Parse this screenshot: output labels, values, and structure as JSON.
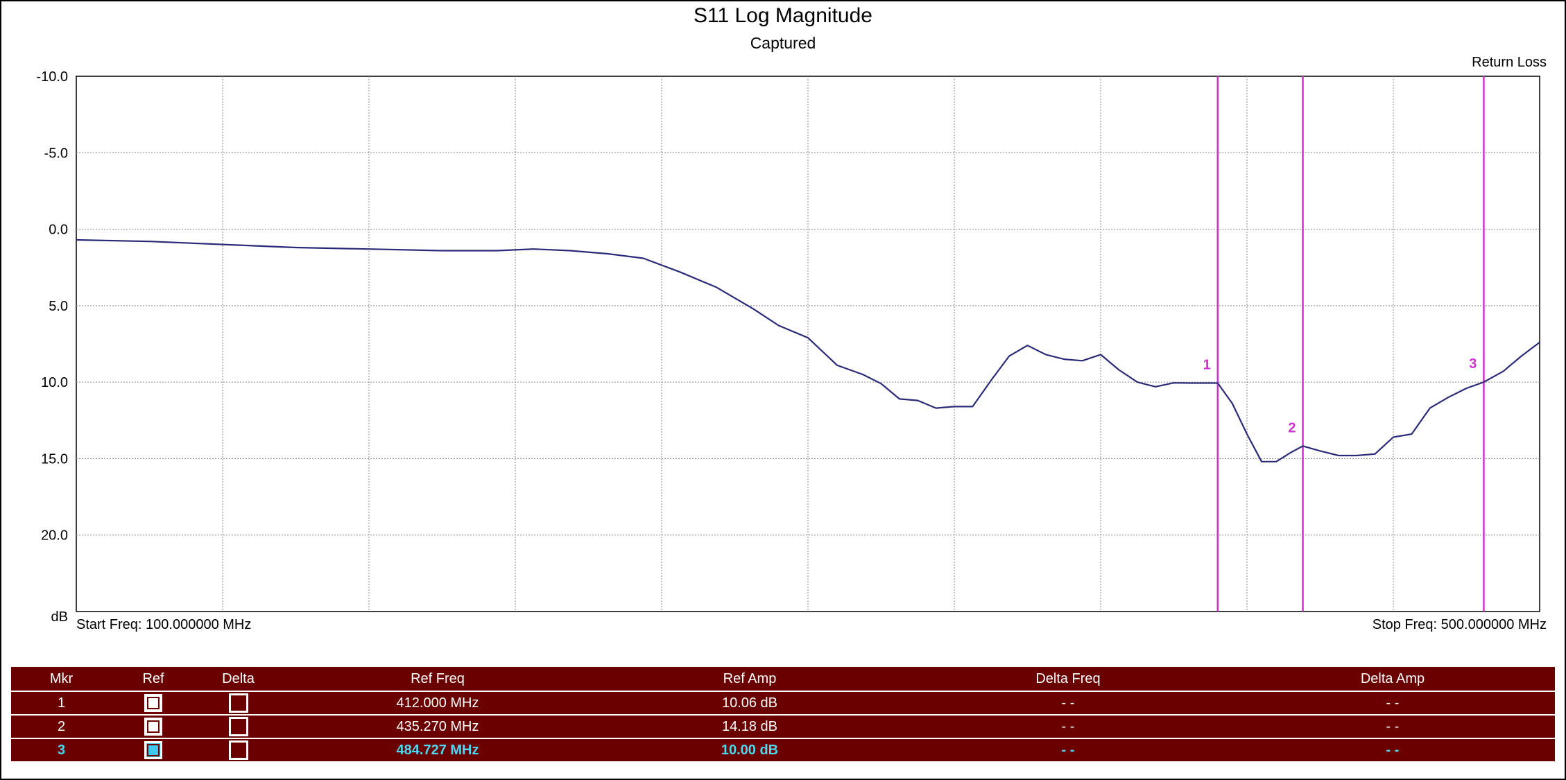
{
  "header": {
    "title": "S11 Log Magnitude",
    "subtitle": "Captured",
    "trace_label": "Return Loss"
  },
  "axis": {
    "y_unit": "dB",
    "start_freq": "Start Freq: 100.000000 MHz",
    "stop_freq": "Stop Freq: 500.000000 MHz"
  },
  "chart_data": {
    "type": "line",
    "title": "S11 Log Magnitude",
    "subtitle": "Captured",
    "xlabel": "",
    "ylabel": "dB",
    "xlim": [
      100,
      500
    ],
    "ylim": [
      -10,
      25
    ],
    "y_inverted": true,
    "y_ticks": [
      "-10.0",
      "-5.0",
      "0.0",
      "5.0",
      "10.0",
      "15.0",
      "20.0"
    ],
    "grid": true,
    "series": [
      {
        "name": "Return Loss",
        "color": "#2a2a78",
        "x": [
          100,
          120,
          140,
          160,
          180,
          200,
          215,
          225,
          235,
          245,
          255,
          265,
          275,
          285,
          292,
          300,
          308,
          315,
          320,
          325,
          330,
          335,
          340,
          345,
          350,
          355,
          360,
          365,
          370,
          375,
          380,
          385,
          390,
          395,
          400,
          405,
          410,
          412,
          416,
          420,
          424,
          428,
          432,
          435.27,
          440,
          445,
          450,
          455,
          460,
          465,
          470,
          475,
          480,
          484.727,
          490,
          495,
          500
        ],
        "values": [
          0.7,
          0.8,
          1.0,
          1.2,
          1.3,
          1.4,
          1.4,
          1.3,
          1.4,
          1.6,
          1.9,
          2.8,
          3.8,
          5.2,
          6.3,
          7.1,
          8.9,
          9.5,
          10.1,
          11.1,
          11.2,
          11.7,
          11.6,
          11.6,
          9.9,
          8.3,
          7.6,
          8.2,
          8.5,
          8.6,
          8.2,
          9.2,
          10.0,
          10.3,
          10.05,
          10.06,
          10.06,
          10.06,
          11.4,
          13.4,
          15.2,
          15.2,
          14.6,
          14.18,
          14.5,
          14.8,
          14.8,
          14.7,
          13.6,
          13.4,
          11.7,
          11.0,
          10.4,
          10.0,
          9.3,
          8.3,
          7.4
        ]
      }
    ],
    "markers": [
      {
        "label": "1",
        "x": 412.0,
        "y": 10.06
      },
      {
        "label": "2",
        "x": 435.27,
        "y": 14.18
      },
      {
        "label": "3",
        "x": 484.727,
        "y": 10.0
      }
    ],
    "marker_color": "#cc33cc"
  },
  "table": {
    "headers": [
      "Mkr",
      "Ref",
      "Delta",
      "Ref Freq",
      "Ref Amp",
      "Delta Freq",
      "Delta Amp"
    ],
    "rows": [
      {
        "mkr": "1",
        "ref_freq": "412.000 MHz",
        "ref_amp": "10.06 dB",
        "delta_freq": "- -",
        "delta_amp": "- -"
      },
      {
        "mkr": "2",
        "ref_freq": "435.270 MHz",
        "ref_amp": "14.18 dB",
        "delta_freq": "- -",
        "delta_amp": "- -"
      },
      {
        "mkr": "3",
        "ref_freq": "484.727 MHz",
        "ref_amp": "10.00 dB",
        "delta_freq": "- -",
        "delta_amp": "- -"
      }
    ]
  }
}
